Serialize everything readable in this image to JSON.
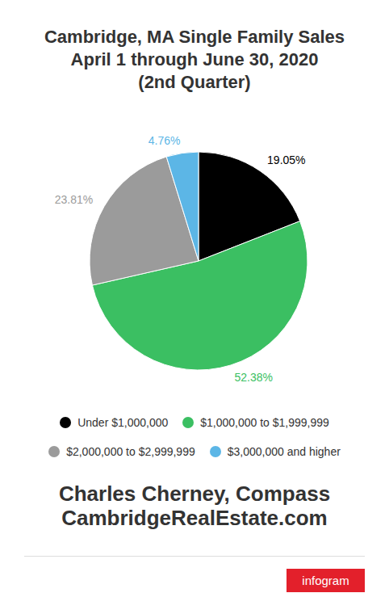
{
  "chart_data": {
    "type": "pie",
    "title": [
      "Cambridge, MA Single Family Sales",
      "April 1 through June 30, 2020",
      "(2nd Quarter)"
    ],
    "categories": [
      "Under $1,000,000",
      "$1,000,000 to $1,999,999",
      "$2,000,000 to $2,999,999",
      "$3,000,000 and higher"
    ],
    "values": [
      19.05,
      52.38,
      23.81,
      4.76
    ],
    "value_labels": [
      "19.05%",
      "52.38%",
      "23.81%",
      "4.76%"
    ],
    "data_labels": true,
    "colors": [
      "#000000",
      "#3bbf62",
      "#9b9b9b",
      "#5cb6e6"
    ],
    "legend": "bottom",
    "annotations": [
      "Charles Cherney, Compass",
      "CambridgeRealEstate.com",
      "infogram"
    ]
  }
}
